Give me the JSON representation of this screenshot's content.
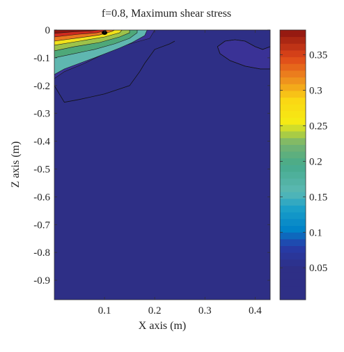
{
  "chart_data": {
    "type": "heatmap",
    "title": "f=0.8, Maximum shear stress",
    "xlabel": "X axis (m)",
    "ylabel": "Z axis (m)",
    "xlim": [
      0,
      0.43
    ],
    "ylim": [
      -0.97,
      0
    ],
    "x_ticks": [
      "0.1",
      "0.2",
      "0.3",
      "0.4"
    ],
    "x_tick_values": [
      0.1,
      0.2,
      0.3,
      0.4
    ],
    "y_ticks": [
      "0",
      "-0.1",
      "-0.2",
      "-0.3",
      "-0.4",
      "-0.5",
      "-0.6",
      "-0.7",
      "-0.8",
      "-0.9"
    ],
    "y_tick_values": [
      0,
      -0.1,
      -0.2,
      -0.3,
      -0.4,
      -0.5,
      -0.6,
      -0.7,
      -0.8,
      -0.9
    ],
    "colorbar": {
      "range": [
        0.005,
        0.385
      ],
      "ticks": [
        "0.05",
        "0.1",
        "0.15",
        "0.2",
        "0.25",
        "0.3",
        "0.35"
      ],
      "tick_values": [
        0.05,
        0.1,
        0.15,
        0.2,
        0.25,
        0.3,
        0.35
      ]
    },
    "background_color": "#2e2f86",
    "regions": [
      {
        "level": 0.05,
        "color": "#3a3296",
        "points": [
          [
            0,
            -0.175
          ],
          [
            0.02,
            -0.15
          ],
          [
            0.06,
            -0.12
          ],
          [
            0.1,
            -0.085
          ],
          [
            0.13,
            -0.06
          ],
          [
            0.16,
            -0.045
          ],
          [
            0.19,
            -0.03
          ],
          [
            0.2,
            0
          ],
          [
            0,
            0
          ]
        ]
      },
      {
        "level": 0.15,
        "color": "#5fb7b0",
        "points": [
          [
            0,
            -0.16
          ],
          [
            0.02,
            -0.14
          ],
          [
            0.05,
            -0.12
          ],
          [
            0.08,
            -0.1
          ],
          [
            0.13,
            -0.065
          ],
          [
            0.155,
            -0.045
          ],
          [
            0.18,
            -0.02
          ],
          [
            0.185,
            0
          ],
          [
            0,
            0
          ]
        ]
      },
      {
        "level": 0.2,
        "color": "#4ea879",
        "points": [
          [
            0,
            -0.1
          ],
          [
            0.04,
            -0.085
          ],
          [
            0.08,
            -0.07
          ],
          [
            0.12,
            -0.05
          ],
          [
            0.15,
            -0.03
          ],
          [
            0.165,
            -0.01
          ],
          [
            0.165,
            0
          ],
          [
            0,
            0
          ]
        ]
      },
      {
        "level": 0.22,
        "color": "#9dc24a",
        "points": [
          [
            0,
            -0.075
          ],
          [
            0.04,
            -0.06
          ],
          [
            0.09,
            -0.045
          ],
          [
            0.13,
            -0.025
          ],
          [
            0.15,
            -0.01
          ],
          [
            0.15,
            0
          ],
          [
            0,
            0
          ]
        ]
      },
      {
        "level": 0.25,
        "color": "#f2e21a",
        "points": [
          [
            0,
            -0.055
          ],
          [
            0.05,
            -0.04
          ],
          [
            0.1,
            -0.025
          ],
          [
            0.13,
            -0.01
          ],
          [
            0.135,
            0
          ],
          [
            0,
            0
          ]
        ]
      },
      {
        "level": 0.3,
        "color": "#e8781e",
        "points": [
          [
            0,
            -0.04
          ],
          [
            0.05,
            -0.028
          ],
          [
            0.09,
            -0.018
          ],
          [
            0.115,
            -0.005
          ],
          [
            0.12,
            0
          ],
          [
            0,
            0
          ]
        ]
      },
      {
        "level": 0.35,
        "color": "#cf2a1e",
        "points": [
          [
            0,
            -0.025
          ],
          [
            0.05,
            -0.015
          ],
          [
            0.085,
            -0.01
          ],
          [
            0.1,
            -0.003
          ],
          [
            0.105,
            0
          ],
          [
            0,
            0
          ]
        ]
      },
      {
        "level": 0.38,
        "color": "#8e1510",
        "points": [
          [
            0,
            -0.012
          ],
          [
            0.04,
            -0.006
          ],
          [
            0.07,
            -0.004
          ],
          [
            0.09,
            0
          ],
          [
            0,
            0
          ]
        ]
      },
      {
        "level": 0.05,
        "color": "#3a3296",
        "points": [
          [
            0.325,
            -0.06
          ],
          [
            0.34,
            -0.04
          ],
          [
            0.36,
            -0.035
          ],
          [
            0.38,
            -0.04
          ],
          [
            0.4,
            -0.06
          ],
          [
            0.415,
            -0.07
          ],
          [
            0.43,
            -0.06
          ],
          [
            0.43,
            -0.14
          ],
          [
            0.41,
            -0.14
          ],
          [
            0.38,
            -0.13
          ],
          [
            0.35,
            -0.11
          ],
          [
            0.33,
            -0.085
          ]
        ]
      }
    ],
    "contour_lines": [
      [
        [
          0,
          -0.2
        ],
        [
          0.02,
          -0.26
        ],
        [
          0.05,
          -0.25
        ],
        [
          0.1,
          -0.23
        ],
        [
          0.15,
          -0.2
        ],
        [
          0.17,
          -0.15
        ],
        [
          0.18,
          -0.12
        ],
        [
          0.2,
          -0.07
        ],
        [
          0.23,
          -0.05
        ],
        [
          0.24,
          -0.04
        ]
      ],
      [
        [
          0.325,
          -0.06
        ],
        [
          0.34,
          -0.04
        ],
        [
          0.36,
          -0.035
        ],
        [
          0.38,
          -0.04
        ],
        [
          0.4,
          -0.06
        ],
        [
          0.415,
          -0.07
        ],
        [
          0.43,
          -0.06
        ]
      ],
      [
        [
          0.325,
          -0.06
        ],
        [
          0.33,
          -0.085
        ],
        [
          0.35,
          -0.11
        ],
        [
          0.38,
          -0.13
        ],
        [
          0.41,
          -0.14
        ],
        [
          0.43,
          -0.14
        ]
      ]
    ],
    "peak": {
      "x": 0.1,
      "z": -0.01
    }
  }
}
